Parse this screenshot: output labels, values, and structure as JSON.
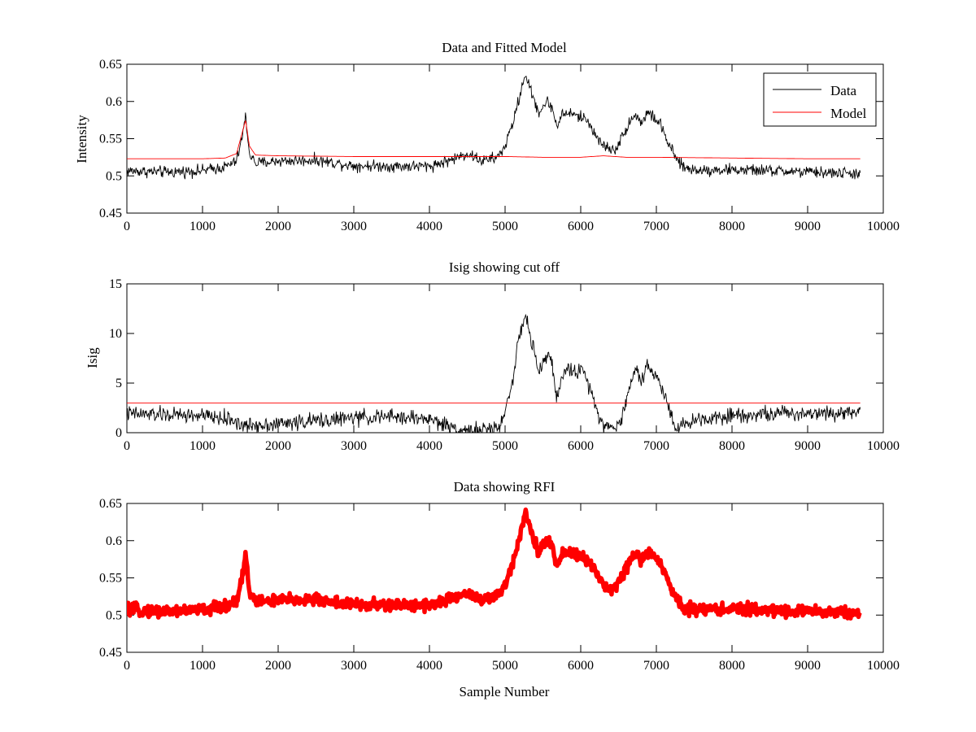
{
  "chart_data": [
    {
      "type": "line",
      "title": "Data and Fitted Model",
      "xlabel": "",
      "ylabel": "Intensity",
      "xlim": [
        0,
        10000
      ],
      "ylim": [
        0.45,
        0.65
      ],
      "xticks": [
        "0",
        "1000",
        "2000",
        "3000",
        "4000",
        "5000",
        "6000",
        "7000",
        "8000",
        "9000",
        "10000"
      ],
      "yticks": [
        "0.45",
        "0.5",
        "0.55",
        "0.6",
        "0.65"
      ],
      "legend": {
        "position": "top-right",
        "entries": [
          "Data",
          "Model"
        ]
      },
      "series": [
        {
          "name": "Data",
          "color": "#000000",
          "noise": 0.006,
          "points": [
            [
              0,
              0.507
            ],
            [
              500,
              0.505
            ],
            [
              1000,
              0.507
            ],
            [
              1300,
              0.512
            ],
            [
              1450,
              0.52
            ],
            [
              1520,
              0.55
            ],
            [
              1570,
              0.58
            ],
            [
              1620,
              0.53
            ],
            [
              1700,
              0.517
            ],
            [
              2000,
              0.52
            ],
            [
              2500,
              0.521
            ],
            [
              3000,
              0.514
            ],
            [
              3500,
              0.513
            ],
            [
              4000,
              0.513
            ],
            [
              4300,
              0.522
            ],
            [
              4500,
              0.53
            ],
            [
              4700,
              0.52
            ],
            [
              4900,
              0.525
            ],
            [
              5000,
              0.54
            ],
            [
              5100,
              0.57
            ],
            [
              5200,
              0.61
            ],
            [
              5270,
              0.638
            ],
            [
              5350,
              0.61
            ],
            [
              5450,
              0.585
            ],
            [
              5550,
              0.6
            ],
            [
              5620,
              0.593
            ],
            [
              5680,
              0.567
            ],
            [
              5750,
              0.582
            ],
            [
              5850,
              0.585
            ],
            [
              5950,
              0.58
            ],
            [
              6050,
              0.578
            ],
            [
              6150,
              0.565
            ],
            [
              6250,
              0.545
            ],
            [
              6350,
              0.538
            ],
            [
              6450,
              0.535
            ],
            [
              6550,
              0.552
            ],
            [
              6650,
              0.575
            ],
            [
              6750,
              0.582
            ],
            [
              6800,
              0.57
            ],
            [
              6880,
              0.585
            ],
            [
              6950,
              0.58
            ],
            [
              7050,
              0.57
            ],
            [
              7150,
              0.545
            ],
            [
              7250,
              0.525
            ],
            [
              7350,
              0.512
            ],
            [
              7500,
              0.508
            ],
            [
              8000,
              0.508
            ],
            [
              8500,
              0.507
            ],
            [
              9000,
              0.505
            ],
            [
              9700,
              0.503
            ]
          ]
        },
        {
          "name": "Model",
          "color": "#ff0000",
          "noise": 0.0,
          "points": [
            [
              0,
              0.523
            ],
            [
              1000,
              0.523
            ],
            [
              1300,
              0.524
            ],
            [
              1450,
              0.53
            ],
            [
              1530,
              0.56
            ],
            [
              1570,
              0.575
            ],
            [
              1620,
              0.54
            ],
            [
              1700,
              0.528
            ],
            [
              2000,
              0.527
            ],
            [
              3000,
              0.526
            ],
            [
              4000,
              0.526
            ],
            [
              5000,
              0.526
            ],
            [
              5500,
              0.525
            ],
            [
              6000,
              0.525
            ],
            [
              6300,
              0.527
            ],
            [
              6600,
              0.525
            ],
            [
              7000,
              0.525
            ],
            [
              8000,
              0.524
            ],
            [
              9000,
              0.523
            ],
            [
              9700,
              0.523
            ]
          ]
        }
      ]
    },
    {
      "type": "line",
      "title": "Isig showing cut off",
      "xlabel": "",
      "ylabel": "Isig",
      "xlim": [
        0,
        10000
      ],
      "ylim": [
        0,
        15
      ],
      "xticks": [
        "0",
        "1000",
        "2000",
        "3000",
        "4000",
        "5000",
        "6000",
        "7000",
        "8000",
        "9000",
        "10000"
      ],
      "yticks": [
        "0",
        "5",
        "10",
        "15"
      ],
      "series": [
        {
          "color": "#000000",
          "noise": 0.6,
          "points": [
            [
              0,
              1.9
            ],
            [
              500,
              1.8
            ],
            [
              1000,
              1.7
            ],
            [
              1400,
              1.3
            ],
            [
              1550,
              0.6
            ],
            [
              1700,
              0.8
            ],
            [
              2000,
              0.9
            ],
            [
              2500,
              1.2
            ],
            [
              3000,
              1.5
            ],
            [
              3500,
              1.6
            ],
            [
              4000,
              1.4
            ],
            [
              4200,
              0.8
            ],
            [
              4400,
              0.3
            ],
            [
              4700,
              0.2
            ],
            [
              4900,
              0.4
            ],
            [
              5000,
              2.0
            ],
            [
              5100,
              5.5
            ],
            [
              5200,
              10.0
            ],
            [
              5270,
              12.0
            ],
            [
              5350,
              9.0
            ],
            [
              5450,
              6.0
            ],
            [
              5550,
              8.0
            ],
            [
              5620,
              7.0
            ],
            [
              5680,
              3.5
            ],
            [
              5750,
              5.5
            ],
            [
              5850,
              6.5
            ],
            [
              5950,
              6.2
            ],
            [
              6050,
              6.0
            ],
            [
              6150,
              4.0
            ],
            [
              6250,
              1.5
            ],
            [
              6350,
              0.6
            ],
            [
              6450,
              0.4
            ],
            [
              6550,
              1.5
            ],
            [
              6650,
              5.0
            ],
            [
              6750,
              6.5
            ],
            [
              6800,
              5.0
            ],
            [
              6880,
              7.0
            ],
            [
              6950,
              6.0
            ],
            [
              7050,
              5.0
            ],
            [
              7150,
              3.0
            ],
            [
              7250,
              0.6
            ],
            [
              7350,
              0.7
            ],
            [
              7500,
              1.3
            ],
            [
              8000,
              1.8
            ],
            [
              8500,
              1.9
            ],
            [
              9000,
              2.0
            ],
            [
              9700,
              2.1
            ]
          ]
        },
        {
          "color": "#ff0000",
          "noise": 0.0,
          "points": [
            [
              0,
              3.0
            ],
            [
              9700,
              3.0
            ]
          ]
        }
      ]
    },
    {
      "type": "scatter",
      "title": "Data showing RFI",
      "xlabel": "Sample Number",
      "ylabel": "",
      "xlim": [
        0,
        10000
      ],
      "ylim": [
        0.45,
        0.65
      ],
      "xticks": [
        "0",
        "1000",
        "2000",
        "3000",
        "4000",
        "5000",
        "6000",
        "7000",
        "8000",
        "9000",
        "10000"
      ],
      "yticks": [
        "0.45",
        "0.5",
        "0.55",
        "0.6",
        "0.65"
      ],
      "series": [
        {
          "color": "#ff0000",
          "noise": 0.006,
          "points": [
            [
              0,
              0.507
            ],
            [
              500,
              0.505
            ],
            [
              1000,
              0.507
            ],
            [
              1300,
              0.512
            ],
            [
              1450,
              0.52
            ],
            [
              1520,
              0.55
            ],
            [
              1570,
              0.582
            ],
            [
              1620,
              0.53
            ],
            [
              1700,
              0.518
            ],
            [
              2000,
              0.52
            ],
            [
              2500,
              0.521
            ],
            [
              3000,
              0.514
            ],
            [
              3500,
              0.513
            ],
            [
              4000,
              0.514
            ],
            [
              4300,
              0.522
            ],
            [
              4500,
              0.53
            ],
            [
              4700,
              0.52
            ],
            [
              4900,
              0.525
            ],
            [
              5000,
              0.54
            ],
            [
              5100,
              0.57
            ],
            [
              5200,
              0.61
            ],
            [
              5270,
              0.64
            ],
            [
              5350,
              0.61
            ],
            [
              5450,
              0.585
            ],
            [
              5550,
              0.6
            ],
            [
              5620,
              0.593
            ],
            [
              5680,
              0.567
            ],
            [
              5750,
              0.582
            ],
            [
              5850,
              0.585
            ],
            [
              5950,
              0.58
            ],
            [
              6050,
              0.578
            ],
            [
              6150,
              0.565
            ],
            [
              6250,
              0.545
            ],
            [
              6350,
              0.538
            ],
            [
              6450,
              0.535
            ],
            [
              6550,
              0.552
            ],
            [
              6650,
              0.575
            ],
            [
              6750,
              0.582
            ],
            [
              6800,
              0.57
            ],
            [
              6880,
              0.587
            ],
            [
              6950,
              0.58
            ],
            [
              7050,
              0.57
            ],
            [
              7150,
              0.545
            ],
            [
              7250,
              0.525
            ],
            [
              7350,
              0.512
            ],
            [
              7500,
              0.508
            ],
            [
              8000,
              0.508
            ],
            [
              8500,
              0.507
            ],
            [
              9000,
              0.505
            ],
            [
              9700,
              0.503
            ]
          ]
        }
      ]
    }
  ]
}
